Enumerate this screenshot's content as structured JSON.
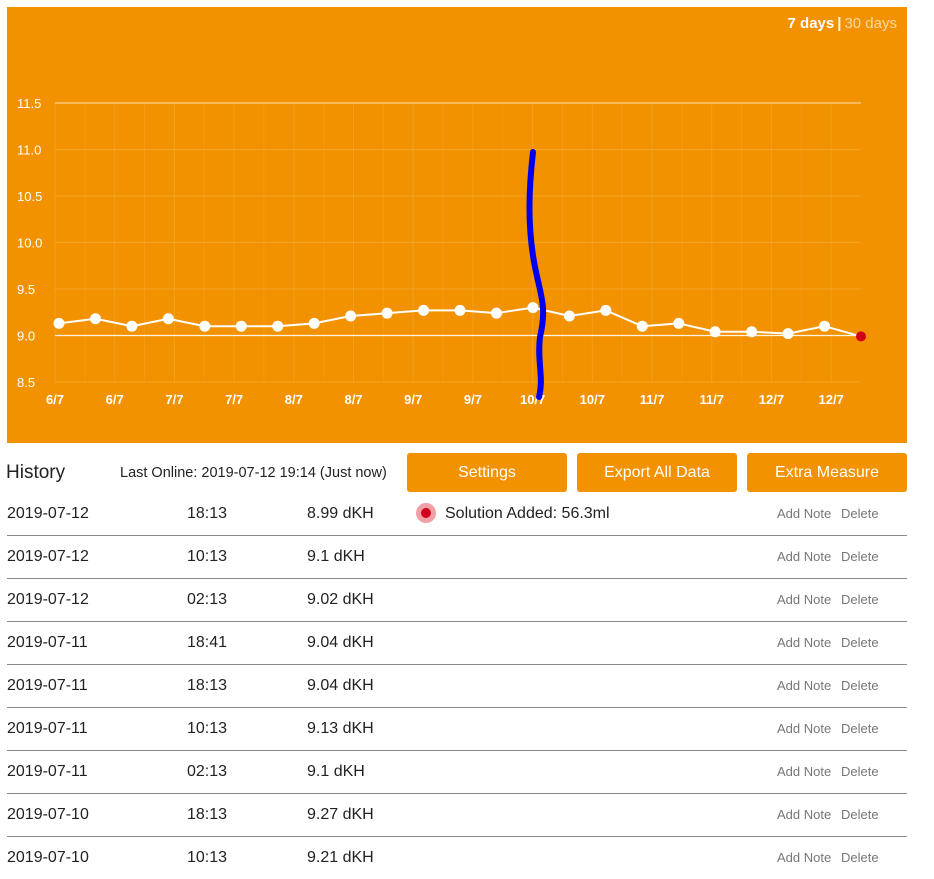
{
  "range_toggle": {
    "selected": "7 days",
    "separator": "|",
    "other": "30 days"
  },
  "chart_data": {
    "type": "line",
    "title": "",
    "xlabel": "",
    "ylabel": "",
    "ylim": [
      8.5,
      11.5
    ],
    "yticks": [
      "11.5",
      "11.0",
      "10.5",
      "10.0",
      "9.5",
      "9.0",
      "8.5"
    ],
    "xticks": [
      "6/7",
      "6/7",
      "7/7",
      "7/7",
      "8/7",
      "8/7",
      "9/7",
      "9/7",
      "10/7",
      "10/7",
      "11/7",
      "11/7",
      "12/7",
      "12/7"
    ],
    "grid": true,
    "reference_line": 9.0,
    "values": [
      9.13,
      9.18,
      9.1,
      9.18,
      9.1,
      9.1,
      9.1,
      9.13,
      9.21,
      9.24,
      9.27,
      9.27,
      9.24,
      9.3,
      9.21,
      9.27,
      9.1,
      9.13,
      9.04,
      9.04,
      9.02,
      9.1,
      8.99
    ],
    "colors": {
      "background": "#f29200",
      "line": "#ffffff",
      "last_point": "#d0021b",
      "annotation_stroke": "#0000ee"
    }
  },
  "history": {
    "title": "History",
    "last_online": "Last Online: 2019-07-12 19:14 (Just now)",
    "buttons": {
      "settings": "Settings",
      "export": "Export All Data",
      "extra": "Extra Measure"
    },
    "add_note_label": "Add Note",
    "delete_label": "Delete",
    "rows": [
      {
        "date": "2019-07-12",
        "time": "18:13",
        "value": "8.99 dKH",
        "note": "Solution Added: 56.3ml"
      },
      {
        "date": "2019-07-12",
        "time": "10:13",
        "value": "9.1 dKH",
        "note": ""
      },
      {
        "date": "2019-07-12",
        "time": "02:13",
        "value": "9.02 dKH",
        "note": ""
      },
      {
        "date": "2019-07-11",
        "time": "18:41",
        "value": "9.04 dKH",
        "note": ""
      },
      {
        "date": "2019-07-11",
        "time": "18:13",
        "value": "9.04 dKH",
        "note": ""
      },
      {
        "date": "2019-07-11",
        "time": "10:13",
        "value": "9.13 dKH",
        "note": ""
      },
      {
        "date": "2019-07-11",
        "time": "02:13",
        "value": "9.1 dKH",
        "note": ""
      },
      {
        "date": "2019-07-10",
        "time": "18:13",
        "value": "9.27 dKH",
        "note": ""
      },
      {
        "date": "2019-07-10",
        "time": "10:13",
        "value": "9.21 dKH",
        "note": ""
      }
    ]
  }
}
